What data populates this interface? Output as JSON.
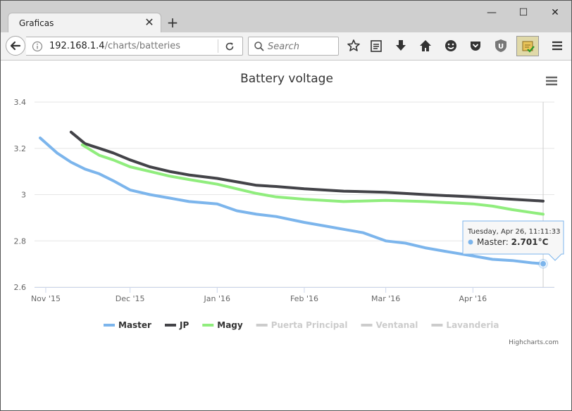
{
  "browser": {
    "tab_title": "Graficas",
    "tab_close_icon": "close-icon",
    "url_host": "192.168.1.4",
    "url_path": "/charts/batteries",
    "search_placeholder": "Search"
  },
  "page": {
    "credits": "Highcharts.com",
    "tooltip": {
      "date": "Tuesday, Apr 26, 11:11:33",
      "series": "Master",
      "value": "2.701°C"
    }
  },
  "chart_data": {
    "type": "line",
    "title": "Battery voltage",
    "xlabel": "",
    "ylabel": "",
    "ylim": [
      2.6,
      3.4
    ],
    "yticks": [
      "2.6",
      "2.8",
      "3",
      "3.2",
      "3.4"
    ],
    "xlim": [
      "2015-10-28",
      "2016-04-30"
    ],
    "xticks": [
      {
        "date": "2015-11-01",
        "label": "Nov '15"
      },
      {
        "date": "2015-12-01",
        "label": "Dec '15"
      },
      {
        "date": "2016-01-01",
        "label": "Jan '16"
      },
      {
        "date": "2016-02-01",
        "label": "Feb '16"
      },
      {
        "date": "2016-03-01",
        "label": "Mar '16"
      },
      {
        "date": "2016-04-01",
        "label": "Apr '16"
      }
    ],
    "legend_position": "bottom-center",
    "grid": true,
    "series": [
      {
        "name": "Master",
        "color": "#7cb5ec",
        "visible": true,
        "points": [
          [
            "2015-10-30",
            3.245
          ],
          [
            "2015-11-05",
            3.18
          ],
          [
            "2015-11-10",
            3.14
          ],
          [
            "2015-11-15",
            3.11
          ],
          [
            "2015-11-20",
            3.09
          ],
          [
            "2015-11-25",
            3.06
          ],
          [
            "2015-12-01",
            3.02
          ],
          [
            "2015-12-08",
            3.0
          ],
          [
            "2015-12-15",
            2.985
          ],
          [
            "2015-12-22",
            2.97
          ],
          [
            "2016-01-01",
            2.96
          ],
          [
            "2016-01-08",
            2.93
          ],
          [
            "2016-01-15",
            2.915
          ],
          [
            "2016-01-22",
            2.905
          ],
          [
            "2016-02-01",
            2.88
          ],
          [
            "2016-02-08",
            2.865
          ],
          [
            "2016-02-15",
            2.85
          ],
          [
            "2016-02-22",
            2.835
          ],
          [
            "2016-03-01",
            2.8
          ],
          [
            "2016-03-08",
            2.79
          ],
          [
            "2016-03-15",
            2.77
          ],
          [
            "2016-03-22",
            2.755
          ],
          [
            "2016-04-01",
            2.735
          ],
          [
            "2016-04-08",
            2.72
          ],
          [
            "2016-04-15",
            2.715
          ],
          [
            "2016-04-22",
            2.705
          ],
          [
            "2016-04-26",
            2.701
          ]
        ]
      },
      {
        "name": "JP",
        "color": "#434348",
        "visible": true,
        "points": [
          [
            "2015-11-10",
            3.27
          ],
          [
            "2015-11-15",
            3.22
          ],
          [
            "2015-11-20",
            3.2
          ],
          [
            "2015-11-25",
            3.18
          ],
          [
            "2015-12-01",
            3.15
          ],
          [
            "2015-12-08",
            3.12
          ],
          [
            "2015-12-15",
            3.1
          ],
          [
            "2015-12-22",
            3.085
          ],
          [
            "2016-01-01",
            3.07
          ],
          [
            "2016-01-08",
            3.055
          ],
          [
            "2016-01-15",
            3.04
          ],
          [
            "2016-01-22",
            3.035
          ],
          [
            "2016-02-01",
            3.025
          ],
          [
            "2016-02-15",
            3.015
          ],
          [
            "2016-03-01",
            3.01
          ],
          [
            "2016-03-15",
            3.0
          ],
          [
            "2016-04-01",
            2.99
          ],
          [
            "2016-04-15",
            2.98
          ],
          [
            "2016-04-26",
            2.972
          ]
        ]
      },
      {
        "name": "Magy",
        "color": "#90ed7d",
        "visible": true,
        "points": [
          [
            "2015-11-14",
            3.215
          ],
          [
            "2015-11-20",
            3.17
          ],
          [
            "2015-11-25",
            3.15
          ],
          [
            "2015-12-01",
            3.12
          ],
          [
            "2015-12-08",
            3.1
          ],
          [
            "2015-12-15",
            3.08
          ],
          [
            "2015-12-22",
            3.065
          ],
          [
            "2016-01-01",
            3.045
          ],
          [
            "2016-01-08",
            3.025
          ],
          [
            "2016-01-15",
            3.005
          ],
          [
            "2016-01-22",
            2.99
          ],
          [
            "2016-02-01",
            2.98
          ],
          [
            "2016-02-15",
            2.97
          ],
          [
            "2016-03-01",
            2.975
          ],
          [
            "2016-03-15",
            2.97
          ],
          [
            "2016-04-01",
            2.96
          ],
          [
            "2016-04-08",
            2.95
          ],
          [
            "2016-04-15",
            2.935
          ],
          [
            "2016-04-26",
            2.915
          ]
        ]
      },
      {
        "name": "Puerta Principal",
        "color": "#cccccc",
        "visible": false,
        "points": []
      },
      {
        "name": "Ventanal",
        "color": "#cccccc",
        "visible": false,
        "points": []
      },
      {
        "name": "Lavanderia",
        "color": "#cccccc",
        "visible": false,
        "points": []
      }
    ],
    "highlight": {
      "series": "Master",
      "date": "2016-04-26",
      "value": 2.701
    }
  }
}
